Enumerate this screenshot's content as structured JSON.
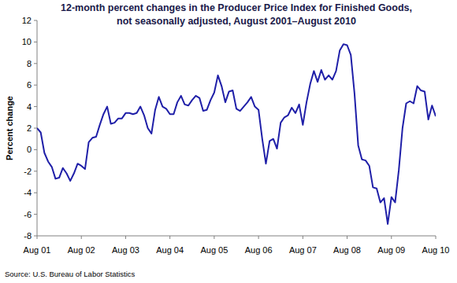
{
  "chart_data": {
    "type": "line",
    "title": "12-month percent changes in the Producer Price Index for Finished Goods,\nnot seasonally adjusted, August 2001–August 2010",
    "y_label": "Percent change",
    "source": "Source: U.S. Bureau of Labor Statistics",
    "color": "#1f1fa8",
    "grid": false,
    "ylim": [
      -8,
      12
    ],
    "yticks": [
      -8,
      -6,
      -4,
      -2,
      0,
      2,
      4,
      6,
      8,
      10,
      12
    ],
    "categories": [
      "Aug 01",
      null,
      null,
      null,
      null,
      null,
      null,
      null,
      null,
      null,
      null,
      null,
      "Aug 02",
      null,
      null,
      null,
      null,
      null,
      null,
      null,
      null,
      null,
      null,
      null,
      "Aug 03",
      null,
      null,
      null,
      null,
      null,
      null,
      null,
      null,
      null,
      null,
      null,
      "Aug 04",
      null,
      null,
      null,
      null,
      null,
      null,
      null,
      null,
      null,
      null,
      null,
      "Aug 05",
      null,
      null,
      null,
      null,
      null,
      null,
      null,
      null,
      null,
      null,
      null,
      "Aug 06",
      null,
      null,
      null,
      null,
      null,
      null,
      null,
      null,
      null,
      null,
      null,
      "Aug 07",
      null,
      null,
      null,
      null,
      null,
      null,
      null,
      null,
      null,
      null,
      null,
      "Aug 08",
      null,
      null,
      null,
      null,
      null,
      null,
      null,
      null,
      null,
      null,
      null,
      "Aug 09",
      null,
      null,
      null,
      null,
      null,
      null,
      null,
      null,
      null,
      null,
      null,
      "Aug 10"
    ],
    "values": [
      2.0,
      1.6,
      -0.3,
      -1.1,
      -1.6,
      -2.7,
      -2.6,
      -1.7,
      -2.2,
      -2.9,
      -2.2,
      -1.3,
      -1.5,
      -1.8,
      0.7,
      1.1,
      1.2,
      2.3,
      3.3,
      4.0,
      2.4,
      2.5,
      2.9,
      2.9,
      3.4,
      3.4,
      3.3,
      3.4,
      4.0,
      3.2,
      2.0,
      1.5,
      3.7,
      4.9,
      4.0,
      3.8,
      3.3,
      3.3,
      4.4,
      5.0,
      4.2,
      4.1,
      4.6,
      5.0,
      4.8,
      3.6,
      3.7,
      4.6,
      5.3,
      6.9,
      5.9,
      4.4,
      5.4,
      5.5,
      3.8,
      3.6,
      4.0,
      4.4,
      4.9,
      4.0,
      3.7,
      1.0,
      -1.3,
      0.8,
      1.0,
      0.1,
      2.5,
      3.0,
      3.2,
      3.9,
      3.4,
      4.2,
      2.3,
      4.4,
      6.1,
      7.3,
      6.3,
      7.4,
      6.5,
      6.9,
      6.5,
      7.3,
      9.2,
      9.8,
      9.7,
      8.8,
      5.2,
      0.4,
      -0.9,
      -1.0,
      -1.5,
      -3.5,
      -3.6,
      -4.9,
      -4.5,
      -6.9,
      -4.4,
      -4.9,
      -1.9,
      2.0,
      4.3,
      4.5,
      4.3,
      5.9,
      5.5,
      5.4,
      2.8,
      4.1,
      3.1
    ]
  }
}
